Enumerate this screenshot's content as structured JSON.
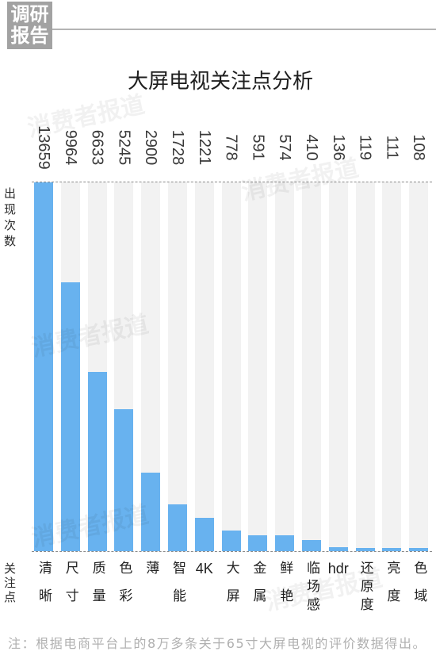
{
  "badge": {
    "line1": "调研",
    "line2": "报告"
  },
  "watermark": "消费者报道",
  "chart_data": {
    "type": "bar",
    "title": "大屏电视关注点分析",
    "ylabel": "出现次数",
    "xlabel": "关注点",
    "categories": [
      "清晰",
      "尺寸",
      "质量",
      "色彩",
      "薄",
      "智能",
      "4K",
      "大屏",
      "金属",
      "鲜艳",
      "临场感",
      "hdr",
      "还原度",
      "亮度",
      "色域"
    ],
    "values": [
      13659,
      9964,
      6633,
      5245,
      2900,
      1728,
      1221,
      778,
      591,
      574,
      410,
      136,
      119,
      111,
      108
    ],
    "ylim": [
      0,
      13659
    ],
    "grid": false,
    "colors": {
      "bar": "#68b2ef",
      "track": "#f2f2f2",
      "badge": "#a2a2a2"
    }
  },
  "note": "注：根据电商平台上的8万多条关于65寸大屏电视的评价数据得出。"
}
